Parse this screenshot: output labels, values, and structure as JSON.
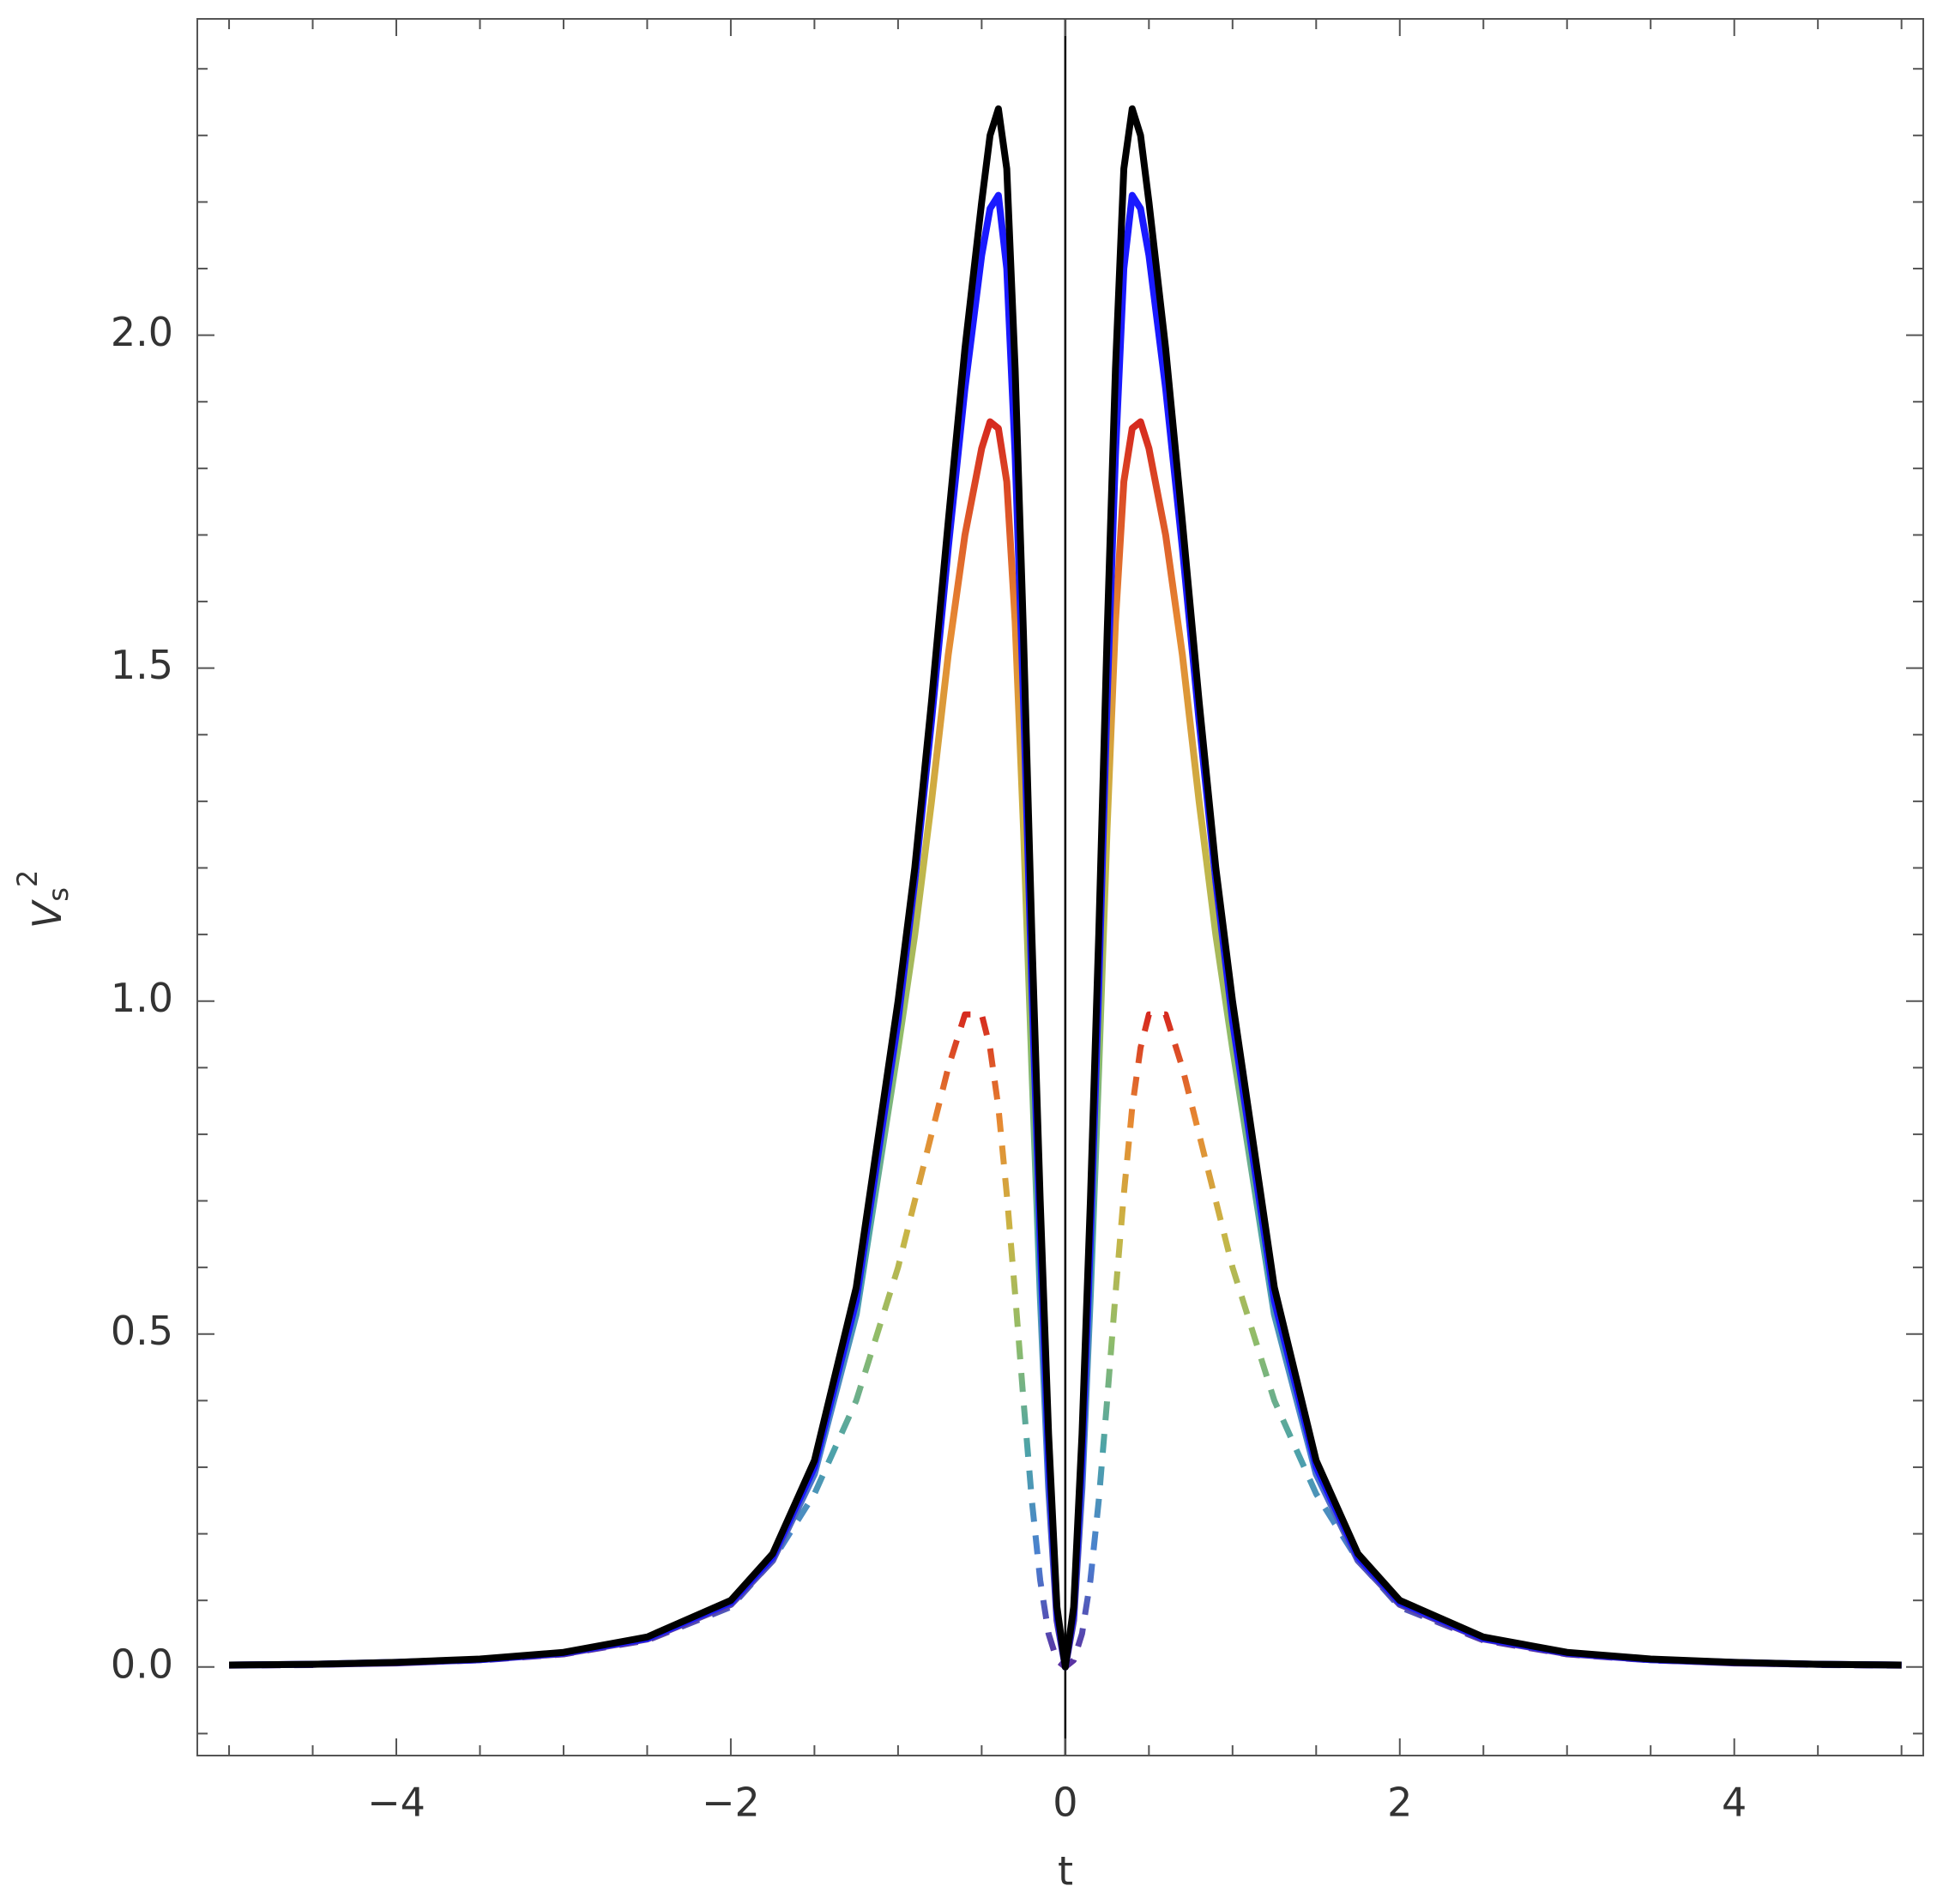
{
  "chart_data": {
    "type": "line",
    "xlabel": "t",
    "ylabel": {
      "base": "V",
      "sub": "s",
      "sup": "2"
    },
    "xlim": [
      -5.19,
      5.13
    ],
    "ylim": [
      -0.133,
      2.475
    ],
    "xticks": [
      {
        "value": -4,
        "label": "−4"
      },
      {
        "value": -2,
        "label": "−2"
      },
      0,
      2,
      4
    ],
    "yticks": [
      {
        "value": 0,
        "label": "0.0"
      },
      0.5,
      {
        "value": 1,
        "label": "1.0"
      },
      1.5,
      {
        "value": 2,
        "label": "2.0"
      }
    ],
    "xminorticks": [
      -5,
      -4.5,
      -3.5,
      -3,
      -2.5,
      -1.5,
      -1,
      -0.5,
      0.5,
      1,
      1.5,
      2.5,
      3,
      3.5,
      4.5,
      5
    ],
    "yminorticks": [
      -0.1,
      0.1,
      0.2,
      0.3,
      0.4,
      0.6,
      0.7,
      0.8,
      0.9,
      1.1,
      1.2,
      1.3,
      1.4,
      1.6,
      1.7,
      1.8,
      1.9,
      2.1,
      2.2,
      2.3,
      2.4
    ],
    "x": [
      -5,
      -4.5,
      -4,
      -3.5,
      -3,
      -2.5,
      -2,
      -1.75,
      -1.5,
      -1.25,
      -1,
      -0.9,
      -0.8,
      -0.7,
      -0.6,
      -0.5,
      -0.45,
      -0.4,
      -0.35,
      -0.3,
      -0.25,
      -0.2,
      -0.15,
      -0.1,
      -0.05,
      0,
      0.05,
      0.1,
      0.15,
      0.2,
      0.25,
      0.3,
      0.35,
      0.4,
      0.45,
      0.5,
      0.6,
      0.7,
      0.8,
      0.9,
      1,
      1.25,
      1.5,
      1.75,
      2,
      2.5,
      3,
      3.5,
      4,
      4.5,
      5
    ],
    "series": [
      {
        "gradient": [
          "#5a2fa0",
          "#4a7fd0",
          "#4da3a8",
          "#8fbc6a",
          "#c9b545",
          "#e68a32",
          "#d62a1f"
        ],
        "dash": true,
        "values": [
          0.002,
          0.003,
          0.006,
          0.01,
          0.019,
          0.04,
          0.09,
          0.16,
          0.26,
          0.4,
          0.6,
          0.7,
          0.8,
          0.9,
          0.98,
          0.98,
          0.93,
          0.84,
          0.71,
          0.56,
          0.4,
          0.25,
          0.13,
          0.05,
          0.01,
          0,
          0.01,
          0.05,
          0.13,
          0.25,
          0.4,
          0.56,
          0.71,
          0.84,
          0.93,
          0.98,
          0.98,
          0.9,
          0.8,
          0.7,
          0.6,
          0.4,
          0.26,
          0.16,
          0.09,
          0.04,
          0.019,
          0.01,
          0.006,
          0.003,
          0.002
        ]
      },
      {
        "gradient": [
          "#5a2fa0",
          "#4a7fd0",
          "#4da3a8",
          "#8fbc6a",
          "#c9b545",
          "#e68a32",
          "#d62a1f"
        ],
        "dash": false,
        "values": [
          0.003,
          0.004,
          0.006,
          0.011,
          0.02,
          0.042,
          0.094,
          0.16,
          0.29,
          0.53,
          0.93,
          1.1,
          1.3,
          1.52,
          1.7,
          1.83,
          1.87,
          1.86,
          1.78,
          1.57,
          1.26,
          0.9,
          0.56,
          0.27,
          0.07,
          0,
          0.07,
          0.27,
          0.56,
          0.9,
          1.26,
          1.57,
          1.78,
          1.86,
          1.87,
          1.83,
          1.7,
          1.52,
          1.3,
          1.1,
          0.93,
          0.53,
          0.29,
          0.16,
          0.094,
          0.042,
          0.02,
          0.011,
          0.006,
          0.004,
          0.003
        ]
      },
      {
        "color": "#1a1aff",
        "dash": false,
        "values": [
          0.003,
          0.004,
          0.007,
          0.011,
          0.021,
          0.043,
          0.097,
          0.165,
          0.3,
          0.55,
          0.97,
          1.18,
          1.42,
          1.68,
          1.92,
          2.12,
          2.19,
          2.21,
          2.1,
          1.82,
          1.45,
          1.02,
          0.64,
          0.31,
          0.08,
          0,
          0.08,
          0.31,
          0.64,
          1.02,
          1.45,
          1.82,
          2.1,
          2.21,
          2.19,
          2.12,
          1.92,
          1.68,
          1.42,
          1.18,
          0.97,
          0.55,
          0.3,
          0.165,
          0.097,
          0.043,
          0.021,
          0.011,
          0.007,
          0.004,
          0.003
        ]
      },
      {
        "color": "#000000",
        "dash": false,
        "values": [
          0.003,
          0.004,
          0.007,
          0.012,
          0.022,
          0.045,
          0.1,
          0.17,
          0.31,
          0.57,
          1.0,
          1.2,
          1.45,
          1.72,
          1.98,
          2.2,
          2.3,
          2.34,
          2.25,
          1.95,
          1.55,
          1.1,
          0.7,
          0.35,
          0.09,
          0,
          0.09,
          0.35,
          0.7,
          1.1,
          1.55,
          1.95,
          2.25,
          2.34,
          2.3,
          2.2,
          1.98,
          1.72,
          1.45,
          1.2,
          1.0,
          0.57,
          0.31,
          0.17,
          0.1,
          0.045,
          0.022,
          0.012,
          0.007,
          0.004,
          0.003
        ]
      }
    ]
  }
}
